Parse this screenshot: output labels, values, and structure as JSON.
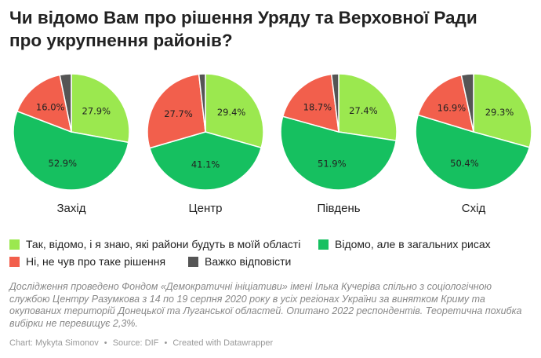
{
  "title_line1": "Чи відомо Вам про рішення Уряду та Верховної Ради",
  "title_line2": "про укрупнення районів?",
  "colors": {
    "yes_know": "#9be84f",
    "general": "#16c060",
    "no": "#f25f4c",
    "hard": "#555555"
  },
  "legend": [
    {
      "key": "yes_know",
      "label": "Так, відомо, і я знаю, які райони будуть в моїй області"
    },
    {
      "key": "general",
      "label": "Відомо, але в загальних рисах"
    },
    {
      "key": "no",
      "label": "Ні, не чув про таке рішення"
    },
    {
      "key": "hard",
      "label": "Важко відповісти"
    }
  ],
  "chart_data": {
    "type": "pie",
    "series_order": [
      "yes_know",
      "general",
      "no",
      "hard"
    ],
    "charts": [
      {
        "name": "Захід",
        "values": [
          27.9,
          52.9,
          16.0,
          3.2
        ],
        "labels": [
          "27.9%",
          "52.9%",
          "16.0%",
          ""
        ]
      },
      {
        "name": "Центр",
        "values": [
          29.4,
          41.1,
          27.7,
          1.8
        ],
        "labels": [
          "29.4%",
          "41.1%",
          "27.7%",
          ""
        ]
      },
      {
        "name": "Південь",
        "values": [
          27.4,
          51.9,
          18.7,
          2.0
        ],
        "labels": [
          "27.4%",
          "51.9%",
          "18.7%",
          ""
        ]
      },
      {
        "name": "Схід",
        "values": [
          29.3,
          50.4,
          16.9,
          3.4
        ],
        "labels": [
          "29.3%",
          "50.4%",
          "16.9%",
          ""
        ]
      }
    ]
  },
  "note": "Дослідження проведено Фондом «Демократичні ініціативи» імені Ілька Кучеріва спільно з соціологічною службою Центру Разумкова з 14 по 19 серпня 2020 року в усіх регіонах України за винятком Криму та окупованих територій Донецької та Луганської областей. Опитано 2022 респондентів. Теоретична похибка вибірки не перевищує 2,3%.",
  "credits": {
    "chart": "Chart: Mykyta Simonov",
    "source": "Source: DIF",
    "created": "Created with Datawrapper",
    "separator": "•"
  }
}
